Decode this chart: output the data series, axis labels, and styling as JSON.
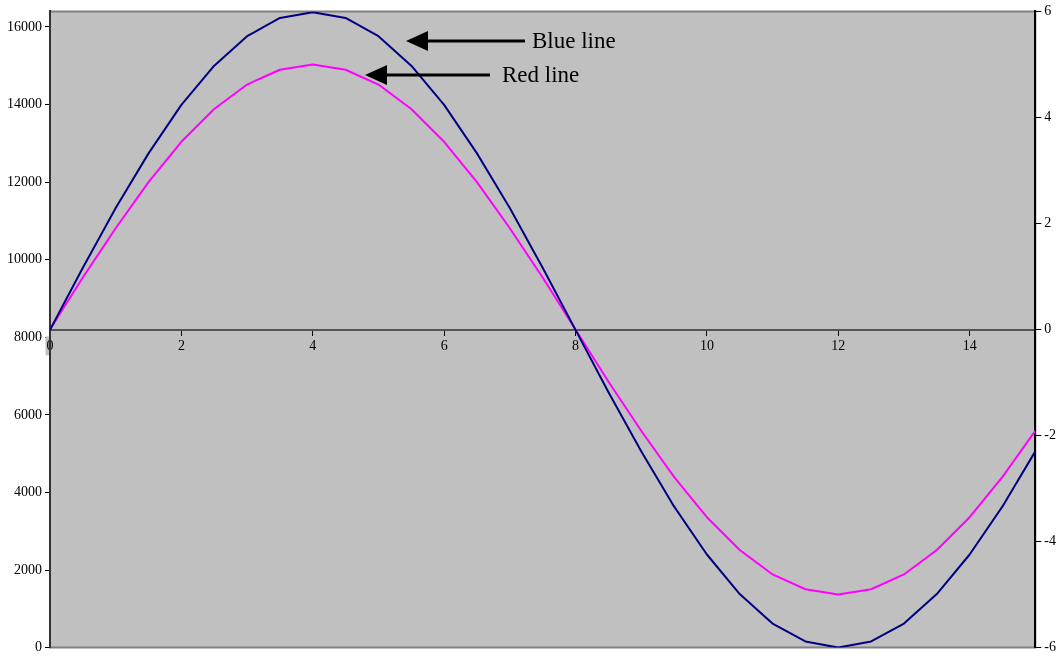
{
  "chart_data": {
    "type": "line",
    "x": [
      0,
      0.5,
      1,
      1.5,
      2,
      2.5,
      3,
      3.5,
      4,
      4.5,
      5,
      5.5,
      6,
      6.5,
      7,
      7.5,
      8,
      8.5,
      9,
      9.5,
      10,
      10.5,
      11,
      11.5,
      12,
      12.5,
      13,
      13.5,
      14,
      14.5,
      15
    ],
    "series": [
      {
        "color": "#000080",
        "values": [
          8190,
          9790,
          11330,
          12740,
          13990,
          15000,
          15760,
          16230,
          16380,
          16230,
          15760,
          15000,
          13990,
          12740,
          11330,
          9790,
          8190,
          6590,
          5060,
          3640,
          2400,
          1380,
          620,
          160,
          0,
          160,
          620,
          1380,
          2400,
          3640,
          5060
        ]
      },
      {
        "color": "#ff00ff",
        "axis": "y2",
        "values": [
          0,
          0.98,
          1.91,
          2.78,
          3.54,
          4.16,
          4.62,
          4.9,
          5,
          4.9,
          4.62,
          4.16,
          3.54,
          2.78,
          1.91,
          0.98,
          0,
          -0.98,
          -1.91,
          -2.78,
          -3.54,
          -4.16,
          -4.62,
          -4.9,
          -5,
          -4.9,
          -4.62,
          -4.16,
          -3.54,
          -2.78,
          -1.91
        ]
      }
    ],
    "xlim": [
      0,
      15
    ],
    "xticks": [
      0,
      2,
      4,
      6,
      8,
      10,
      12,
      14
    ],
    "ylim": [
      0,
      16400
    ],
    "yticks": [
      0,
      2000,
      4000,
      6000,
      8000,
      10000,
      12000,
      14000,
      16000
    ],
    "y2lim": [
      -6,
      6
    ],
    "y2ticks": [
      -6,
      -4,
      -2,
      0,
      2,
      4,
      6
    ],
    "annotations": [
      "Blue line",
      "Red line"
    ],
    "grid": false,
    "legend": false,
    "marker": "none",
    "line_style": "solid"
  }
}
